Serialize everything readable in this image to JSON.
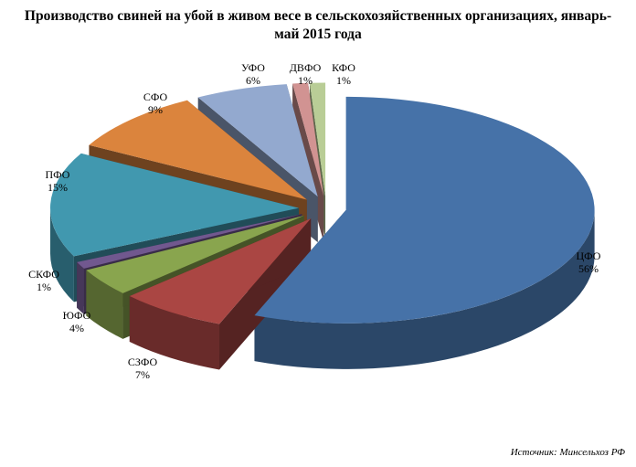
{
  "chart_data": {
    "type": "pie",
    "title": "Производство свиней на убой в живом весе в сельскохозяйственных организациях, январь-май 2015 года",
    "title_lines": [
      "Производство свиней на убой в живом весе в сельскохозяйственных организациях, январь-",
      "май 2015 года"
    ],
    "source": "Источник: Минсельхоз РФ",
    "exploded": true,
    "three_d": true,
    "legend": "none",
    "categories": [
      "ЦФО",
      "СЗФО",
      "ЮФО",
      "СКФО",
      "ПФО",
      "СФО",
      "УФО",
      "ДВФО",
      "КФО"
    ],
    "values": [
      56,
      7,
      4,
      1,
      15,
      9,
      6,
      1,
      1
    ],
    "value_labels": [
      "56%",
      "7%",
      "4%",
      "1%",
      "15%",
      "9%",
      "6%",
      "1%",
      "1%"
    ],
    "colors": [
      "#4672A8",
      "#AA4643",
      "#89A54E",
      "#71588F",
      "#4198AF",
      "#DB843D",
      "#93A9CF",
      "#D19392",
      "#B9CD96"
    ]
  }
}
